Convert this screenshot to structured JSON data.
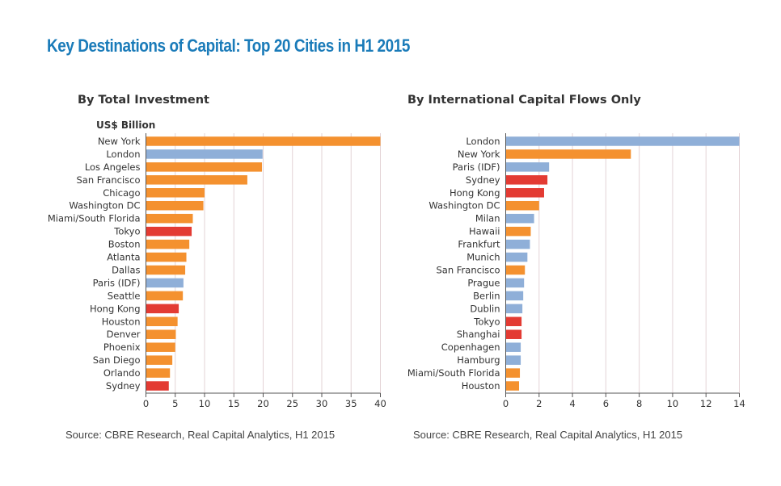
{
  "title": "Key Destinations of Capital: Top 20 Cities in H1 2015",
  "colors": {
    "americas": "#f4912f",
    "europe": "#8fafd8",
    "asia": "#e33b33",
    "title": "#1a7bb9",
    "grid": "#e3d3d6"
  },
  "chart_data": [
    {
      "type": "bar",
      "orientation": "horizontal",
      "title": "By Total Investment",
      "ylabel": "US$ Billion",
      "xlim": [
        0,
        40
      ],
      "xticks": [
        0,
        5,
        10,
        15,
        20,
        25,
        30,
        35,
        40
      ],
      "grid": true,
      "source": "Source: CBRE Research, Real Capital Analytics, H1 2015",
      "categories": [
        "New York",
        "London",
        "Los Angeles",
        "San Francisco",
        "Chicago",
        "Washington DC",
        "Miami/South Florida",
        "Tokyo",
        "Boston",
        "Atlanta",
        "Dallas",
        "Paris (IDF)",
        "Seattle",
        "Hong Kong",
        "Houston",
        "Denver",
        "Phoenix",
        "San Diego",
        "Orlando",
        "Sydney"
      ],
      "values": [
        41,
        19.9,
        19.8,
        17.3,
        10.0,
        9.8,
        8.0,
        7.8,
        7.4,
        6.9,
        6.7,
        6.4,
        6.3,
        5.6,
        5.4,
        5.1,
        5.0,
        4.5,
        4.1,
        3.9
      ],
      "bar_colors": [
        "#f4912f",
        "#8fafd8",
        "#f4912f",
        "#f4912f",
        "#f4912f",
        "#f4912f",
        "#f4912f",
        "#e33b33",
        "#f4912f",
        "#f4912f",
        "#f4912f",
        "#8fafd8",
        "#f4912f",
        "#e33b33",
        "#f4912f",
        "#f4912f",
        "#f4912f",
        "#f4912f",
        "#f4912f",
        "#e33b33"
      ]
    },
    {
      "type": "bar",
      "orientation": "horizontal",
      "title": "By International Capital Flows Only",
      "xlim": [
        0,
        14
      ],
      "xticks": [
        0,
        2,
        4,
        6,
        8,
        10,
        12,
        14
      ],
      "grid": true,
      "source": "Source: CBRE Research, Real Capital Analytics, H1 2015",
      "categories": [
        "London",
        "New York",
        "Paris (IDF)",
        "Sydney",
        "Hong Kong",
        "Washington DC",
        "Milan",
        "Hawaii",
        "Frankfurt",
        "Munich",
        "San Francisco",
        "Prague",
        "Berlin",
        "Dublin",
        "Tokyo",
        "Shanghai",
        "Copenhagen",
        "Hamburg",
        "Miami/South Florida",
        "Houston"
      ],
      "values": [
        14.1,
        7.5,
        2.6,
        2.5,
        2.3,
        2.0,
        1.7,
        1.5,
        1.45,
        1.3,
        1.15,
        1.1,
        1.05,
        1.0,
        0.95,
        0.95,
        0.9,
        0.9,
        0.85,
        0.8
      ],
      "bar_colors": [
        "#8fafd8",
        "#f4912f",
        "#8fafd8",
        "#e33b33",
        "#e33b33",
        "#f4912f",
        "#8fafd8",
        "#f4912f",
        "#8fafd8",
        "#8fafd8",
        "#f4912f",
        "#8fafd8",
        "#8fafd8",
        "#8fafd8",
        "#e33b33",
        "#e33b33",
        "#8fafd8",
        "#8fafd8",
        "#f4912f",
        "#f4912f"
      ]
    }
  ]
}
